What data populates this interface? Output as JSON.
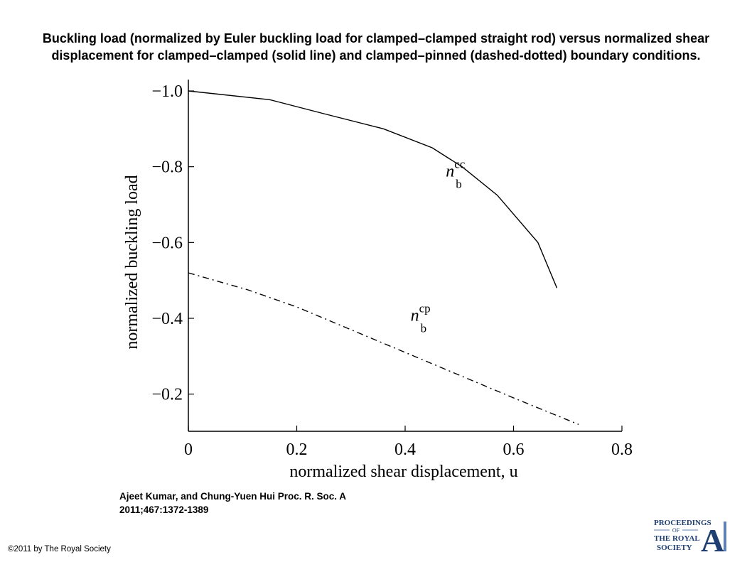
{
  "header": {
    "title": "Buckling load (normalized by Euler buckling load for clamped–clamped straight rod) versus normalized shear displacement for clamped–clamped (solid line) and clamped–pinned (dashed-dotted) boundary conditions."
  },
  "footer": {
    "citation_line1": "Ajeet Kumar, and Chung-Yuen Hui Proc. R. Soc. A",
    "citation_line2": "2011;467:1372-1389",
    "copyright": "©2011 by The Royal Society"
  },
  "logo": {
    "line1": "PROCEEDINGS",
    "line2": "OF",
    "line3": "THE ROYAL",
    "line4": "SOCIETY",
    "letter": "A",
    "primary_color": "#1f3f73",
    "accent_color": "#5f80b2"
  },
  "chart_data": {
    "type": "line",
    "xlabel": "normalized shear displacement, u",
    "ylabel": "normalized buckling load",
    "xlim": [
      0,
      0.8
    ],
    "ylim": [
      -0.1,
      -1.0
    ],
    "x_ticks": [
      0,
      0.2,
      0.4,
      0.6,
      0.8
    ],
    "x_tick_labels": [
      "0",
      "0.2",
      "0.4",
      "0.6",
      "0.8"
    ],
    "y_ticks": [
      -1.0,
      -0.8,
      -0.6,
      -0.4,
      -0.2
    ],
    "y_tick_labels": [
      "−1.0",
      "−0.8",
      "−0.6",
      "−0.4",
      "−0.2"
    ],
    "grid": false,
    "series": [
      {
        "name": "n_b^cc",
        "label_base": "n",
        "label_sub": "b",
        "label_sup": "cc",
        "style": "solid",
        "color": "#000000",
        "points": [
          {
            "x": 0.0,
            "y": -1.0
          },
          {
            "x": 0.15,
            "y": -0.977
          },
          {
            "x": 0.25,
            "y": -0.94
          },
          {
            "x": 0.36,
            "y": -0.9
          },
          {
            "x": 0.45,
            "y": -0.85
          },
          {
            "x": 0.505,
            "y": -0.8
          },
          {
            "x": 0.57,
            "y": -0.725
          },
          {
            "x": 0.645,
            "y": -0.6
          },
          {
            "x": 0.68,
            "y": -0.48
          }
        ]
      },
      {
        "name": "n_b^cp",
        "label_base": "n",
        "label_sub": "b",
        "label_sup": "cp",
        "style": "dashdot",
        "color": "#000000",
        "points": [
          {
            "x": 0.0,
            "y": -0.52
          },
          {
            "x": 0.11,
            "y": -0.475
          },
          {
            "x": 0.2,
            "y": -0.43
          },
          {
            "x": 0.3,
            "y": -0.37
          },
          {
            "x": 0.4,
            "y": -0.31
          },
          {
            "x": 0.5,
            "y": -0.25
          },
          {
            "x": 0.6,
            "y": -0.19
          },
          {
            "x": 0.72,
            "y": -0.12
          }
        ]
      }
    ],
    "annotations": [
      {
        "series": "n_b^cc",
        "near_x": 0.475,
        "near_y": -0.8
      },
      {
        "series": "n_b^cp",
        "near_x": 0.41,
        "near_y": -0.42
      }
    ]
  }
}
